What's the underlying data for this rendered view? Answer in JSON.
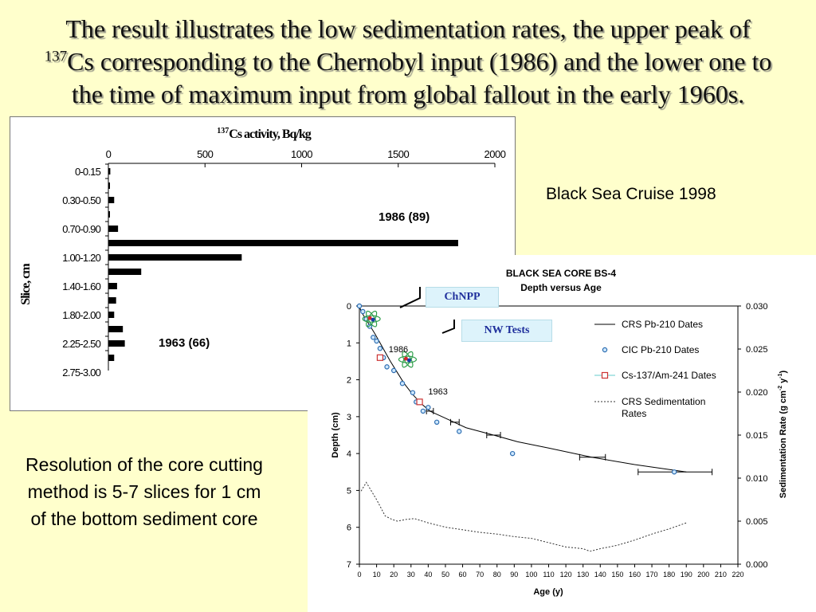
{
  "title": {
    "line1": "The result illustrates the low sedimentation rates, the upper peak of",
    "sup": "137",
    "line2": "Cs corresponding to the Chernobyl input (1986) and the lower one to",
    "line3": "the time of maximum input from global fallout in the early 1960s."
  },
  "cruise_label": "Black Sea Cruise 1998",
  "resolution_note": "Resolution of the core cutting method is 5-7 slices for 1 cm of the bottom sediment core",
  "callouts": {
    "chnpp": "ChNPP",
    "nw_tests": "NW Tests"
  },
  "colors": {
    "background": "#ffffcc",
    "bar": "#000000",
    "cic_marker": "#2b6cb0",
    "cs_marker": "#cc3333",
    "callout_fill": "#ddf3fb",
    "callout_text": "#1f2f9c"
  },
  "chart_data": [
    {
      "type": "bar",
      "orientation": "horizontal",
      "title": "Cs activity, Bq/kg",
      "title_sup": "137",
      "ylabel": "Slice, cm",
      "xlim": [
        0,
        2000
      ],
      "x_ticks": [
        0,
        500,
        1000,
        1500,
        2000
      ],
      "category_tick_labels": [
        "0-0.15",
        "0.30-0.50",
        "0.70-0.90",
        "1.00-1.20",
        "1.40-1.60",
        "1.80-2.00",
        "2.25-2.50",
        "2.75-3.00"
      ],
      "values": [
        10,
        8,
        30,
        8,
        50,
        1810,
        690,
        170,
        45,
        40,
        30,
        75,
        85,
        30
      ],
      "annotations": [
        {
          "text": "1986 (89)",
          "bar_index": 5
        },
        {
          "text": "1963 (66)",
          "bar_index": 12
        }
      ],
      "grid": false
    },
    {
      "type": "scatter",
      "title": "BLACK SEA CORE BS-4",
      "subtitle": "Depth versus Age",
      "xlabel": "Age (y)",
      "ylabel": "Depth (cm)",
      "y2label": "Sedimentation Rate (g cm",
      "y2label_sup1": "-2",
      "y2label_mid": " y",
      "y2label_sup2": "-1",
      "y2label_end": ")",
      "xlim": [
        0,
        220
      ],
      "ylim": [
        0,
        7
      ],
      "y2lim": [
        0,
        0.03
      ],
      "x_ticks": [
        0,
        10,
        20,
        30,
        40,
        50,
        60,
        70,
        80,
        90,
        100,
        110,
        120,
        130,
        140,
        150,
        160,
        170,
        180,
        190,
        200,
        210,
        220
      ],
      "y_ticks": [
        0,
        1,
        2,
        3,
        4,
        5,
        6,
        7
      ],
      "y2_ticks": [
        "0.000",
        "0.005",
        "0.010",
        "0.015",
        "0.020",
        "0.025",
        "0.030"
      ],
      "legend_position": "top-right",
      "annotations": [
        {
          "text": "1986",
          "x": 17,
          "y": 1.25
        },
        {
          "text": "1963",
          "x": 40,
          "y": 2.4
        }
      ],
      "series": [
        {
          "name": "CRS Pb-210 Dates",
          "kind": "line",
          "x": [
            0,
            1,
            3,
            5,
            7,
            9,
            12,
            15,
            18,
            22,
            26,
            31,
            36,
            41,
            48,
            55,
            62,
            78,
            92,
            110,
            135,
            160,
            190
          ],
          "y": [
            0,
            0.15,
            0.3,
            0.45,
            0.6,
            0.75,
            1.0,
            1.25,
            1.5,
            1.8,
            2.1,
            2.4,
            2.65,
            2.85,
            3.0,
            3.15,
            3.3,
            3.5,
            3.68,
            3.85,
            4.1,
            4.3,
            4.5
          ],
          "error_x": [
            {
              "y": 2.85,
              "lo": 39,
              "hi": 43
            },
            {
              "y": 3.15,
              "lo": 53,
              "hi": 58
            },
            {
              "y": 3.5,
              "lo": 74,
              "hi": 82
            },
            {
              "y": 4.1,
              "lo": 128,
              "hi": 143
            },
            {
              "y": 4.5,
              "lo": 162,
              "hi": 205
            }
          ]
        },
        {
          "name": "CIC Pb-210 Dates",
          "kind": "points",
          "x": [
            0,
            2,
            4,
            6,
            8,
            10,
            12,
            14,
            16,
            20,
            25,
            31,
            33,
            37,
            40,
            45,
            58,
            89,
            183
          ],
          "y": [
            0,
            0.15,
            0.35,
            0.55,
            0.85,
            0.95,
            1.15,
            1.4,
            1.65,
            1.75,
            2.1,
            2.35,
            2.6,
            2.85,
            2.75,
            3.15,
            3.4,
            4.0,
            4.5
          ]
        },
        {
          "name": "Cs-137/Am-241 Dates",
          "kind": "points",
          "x": [
            12,
            35
          ],
          "y": [
            1.4,
            2.6
          ]
        },
        {
          "name": "CRS Sedimentation Rates",
          "kind": "dotted-line",
          "axis": "right",
          "x": [
            1,
            4,
            10,
            15,
            19,
            22,
            27,
            32,
            40,
            50,
            60,
            70,
            80,
            90,
            100,
            110,
            120,
            130,
            134,
            140,
            150,
            160,
            170,
            180,
            190
          ],
          "y": [
            0.0085,
            0.0095,
            0.0075,
            0.0056,
            0.0052,
            0.005,
            0.0052,
            0.0053,
            0.0048,
            0.0043,
            0.004,
            0.0037,
            0.0035,
            0.0032,
            0.003,
            0.0025,
            0.002,
            0.0018,
            0.0015,
            0.0018,
            0.0022,
            0.0028,
            0.0035,
            0.0041,
            0.0048
          ]
        }
      ]
    }
  ]
}
